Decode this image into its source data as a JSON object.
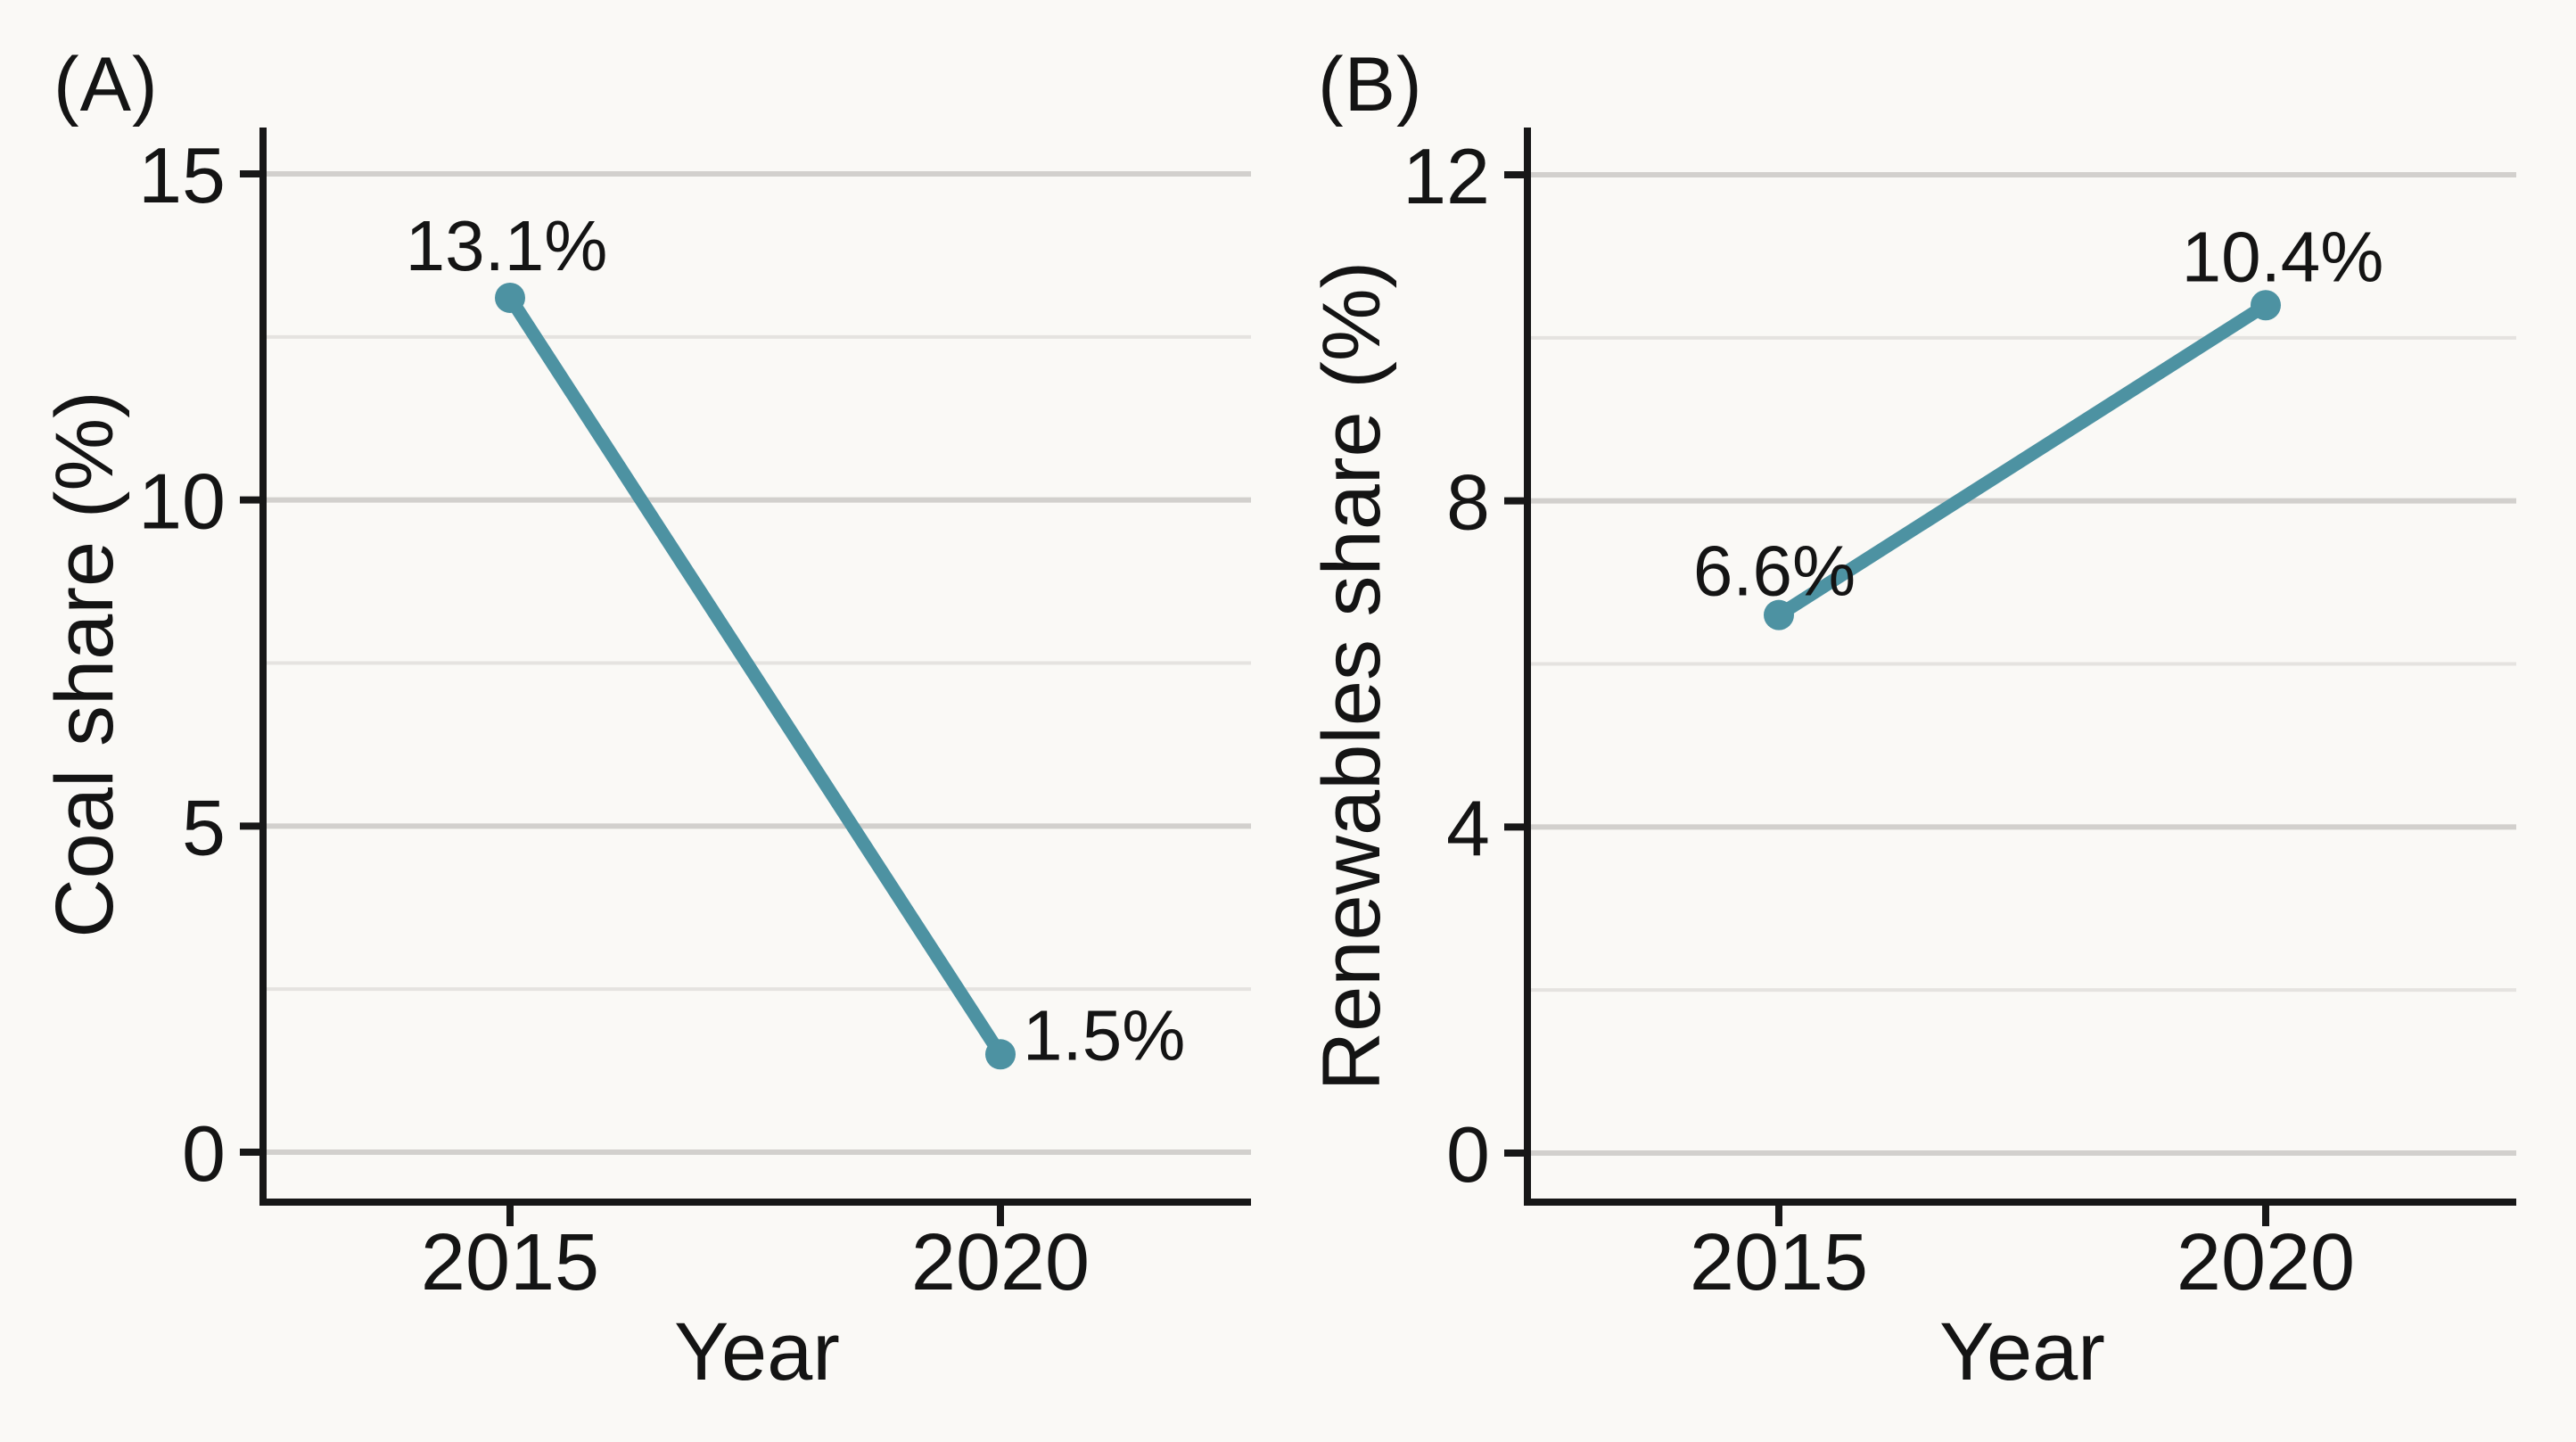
{
  "figure": {
    "kind": "two-panel line chart",
    "panel_a_label": "(A)",
    "panel_b_label": "(B)"
  },
  "chart_data": [
    {
      "type": "line",
      "panel_label": "(A)",
      "xlabel": "Year",
      "ylabel": "Coal share (%)",
      "x": [
        2015,
        2020
      ],
      "xtick_labels": [
        "2015",
        "2020"
      ],
      "series": [
        {
          "name": "Coal share",
          "values": [
            13.1,
            1.5
          ]
        }
      ],
      "point_labels": [
        "13.1%",
        "1.5%"
      ],
      "ylim": [
        0,
        15
      ],
      "yticks_major": [
        0,
        5,
        10,
        15
      ],
      "ytick_labels": [
        "0",
        "5",
        "10",
        "15"
      ],
      "yticks_minor": [
        2.5,
        7.5,
        12.5
      ],
      "grid": "horizontal-major-and-minor",
      "legend": "none",
      "line_color": "#4d92a2"
    },
    {
      "type": "line",
      "panel_label": "(B)",
      "xlabel": "Year",
      "ylabel": "Renewables share (%)",
      "x": [
        2015,
        2020
      ],
      "xtick_labels": [
        "2015",
        "2020"
      ],
      "series": [
        {
          "name": "Renewables share",
          "values": [
            6.6,
            10.4
          ]
        }
      ],
      "point_labels": [
        "6.6%",
        "10.4%"
      ],
      "ylim": [
        0,
        12
      ],
      "yticks_major": [
        0,
        4,
        8,
        12
      ],
      "ytick_labels": [
        "0",
        "4",
        "8",
        "12"
      ],
      "yticks_minor": [
        2,
        6,
        10
      ],
      "grid": "horizontal-major-and-minor",
      "legend": "none",
      "line_color": "#4d92a2"
    }
  ],
  "colors": {
    "series": "#4d92a2",
    "grid_major": "#d2d0cd",
    "grid_minor": "#e5e3e0",
    "axis": "#171717",
    "text": "#141414",
    "background": "#faf9f6"
  }
}
